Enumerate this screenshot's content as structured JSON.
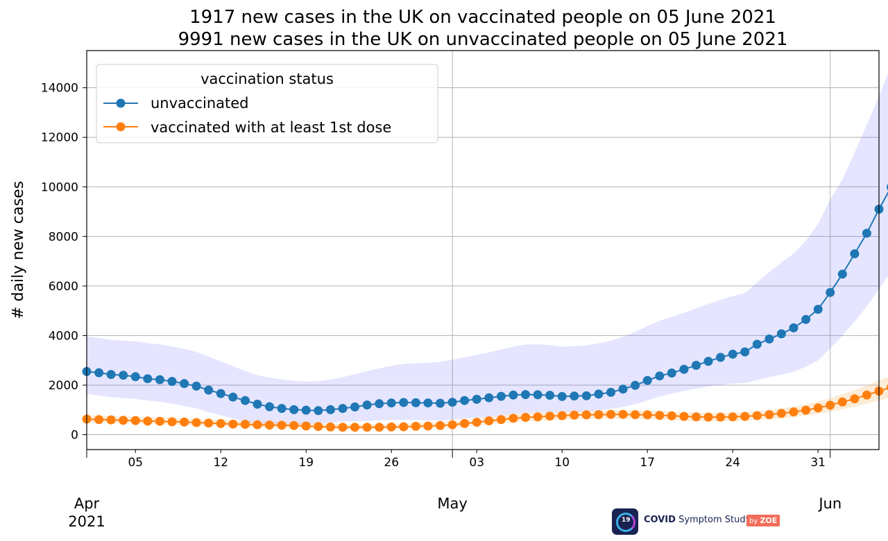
{
  "chart_data": {
    "type": "line",
    "title_lines": [
      "1917 new cases in the UK on vaccinated people on 05 June 2021",
      "9991 new cases in the UK on unvaccinated people on 05 June 2021"
    ],
    "xlabel": "",
    "ylabel": "# daily new cases",
    "x_start": "2021-04-01",
    "x_end": "2021-06-05",
    "ylim": [
      -600,
      15500
    ],
    "y_ticks": [
      0,
      2000,
      4000,
      6000,
      8000,
      10000,
      12000,
      14000
    ],
    "x_minor_ticks": [
      {
        "date": "2021-04-05",
        "label": "05"
      },
      {
        "date": "2021-04-12",
        "label": "12"
      },
      {
        "date": "2021-04-19",
        "label": "19"
      },
      {
        "date": "2021-04-26",
        "label": "26"
      },
      {
        "date": "2021-05-03",
        "label": "03"
      },
      {
        "date": "2021-05-10",
        "label": "10"
      },
      {
        "date": "2021-05-17",
        "label": "17"
      },
      {
        "date": "2021-05-24",
        "label": "24"
      },
      {
        "date": "2021-05-31",
        "label": "31"
      }
    ],
    "x_major_ticks": [
      {
        "date": "2021-04-01",
        "label": "Apr",
        "sublabel": "2021"
      },
      {
        "date": "2021-05-01",
        "label": "May",
        "sublabel": ""
      },
      {
        "date": "2021-06-01",
        "label": "Jun",
        "sublabel": ""
      }
    ],
    "grid": true,
    "legend": {
      "title": "vaccination status",
      "placement": "top-left"
    },
    "series": [
      {
        "name": "unvaccinated",
        "color": "#1f77b4",
        "band_color": "#6666ff",
        "values": [
          2550,
          2500,
          2430,
          2400,
          2340,
          2260,
          2220,
          2150,
          2060,
          1960,
          1800,
          1660,
          1520,
          1380,
          1230,
          1130,
          1060,
          1010,
          990,
          970,
          1010,
          1060,
          1120,
          1200,
          1250,
          1280,
          1300,
          1290,
          1280,
          1270,
          1310,
          1380,
          1430,
          1490,
          1550,
          1600,
          1620,
          1610,
          1590,
          1540,
          1560,
          1570,
          1640,
          1710,
          1840,
          1990,
          2190,
          2370,
          2490,
          2640,
          2800,
          2960,
          3120,
          3250,
          3340,
          3650,
          3860,
          4070,
          4310,
          4650,
          5060,
          5740,
          6480,
          7300,
          8130,
          9100,
          9991
        ],
        "ci_lower": [
          1650,
          1580,
          1520,
          1480,
          1440,
          1380,
          1330,
          1250,
          1160,
          1060,
          910,
          780,
          650,
          530,
          430,
          390,
          370,
          380,
          410,
          440,
          480,
          520,
          540,
          560,
          580,
          590,
          600,
          590,
          580,
          570,
          600,
          640,
          680,
          720,
          780,
          840,
          880,
          900,
          900,
          900,
          920,
          940,
          980,
          1040,
          1120,
          1240,
          1380,
          1540,
          1660,
          1760,
          1860,
          1940,
          2000,
          2060,
          2080,
          2200,
          2320,
          2420,
          2540,
          2740,
          3000,
          3480,
          4000,
          4560,
          5180,
          5880,
          6580
        ],
        "ci_upper": [
          3960,
          3900,
          3830,
          3800,
          3760,
          3700,
          3640,
          3560,
          3460,
          3340,
          3150,
          2960,
          2760,
          2580,
          2400,
          2300,
          2230,
          2170,
          2150,
          2160,
          2220,
          2320,
          2440,
          2570,
          2680,
          2780,
          2860,
          2880,
          2900,
          2940,
          3020,
          3120,
          3220,
          3320,
          3440,
          3560,
          3640,
          3650,
          3610,
          3550,
          3570,
          3600,
          3690,
          3790,
          3950,
          4150,
          4380,
          4600,
          4760,
          4920,
          5100,
          5270,
          5440,
          5590,
          5710,
          6150,
          6560,
          6950,
          7310,
          7830,
          8500,
          9490,
          10300,
          11380,
          12500,
          13660,
          14900
        ]
      },
      {
        "name": "vaccinated with at least 1st dose",
        "color": "#ff7f0e",
        "band_color": "#f5c07a",
        "values": [
          630,
          610,
          600,
          580,
          570,
          550,
          540,
          520,
          510,
          490,
          470,
          450,
          430,
          420,
          400,
          390,
          380,
          370,
          350,
          330,
          310,
          300,
          300,
          300,
          300,
          310,
          320,
          340,
          350,
          370,
          400,
          450,
          500,
          560,
          610,
          660,
          700,
          720,
          750,
          770,
          790,
          800,
          810,
          820,
          820,
          810,
          800,
          780,
          760,
          740,
          720,
          710,
          710,
          720,
          740,
          770,
          810,
          860,
          920,
          990,
          1080,
          1190,
          1320,
          1450,
          1600,
          1760,
          1917
        ],
        "ci_lower": [
          500,
          490,
          480,
          460,
          450,
          430,
          420,
          400,
          390,
          370,
          350,
          340,
          320,
          310,
          290,
          280,
          270,
          260,
          250,
          240,
          220,
          210,
          210,
          210,
          210,
          220,
          230,
          240,
          250,
          270,
          290,
          330,
          370,
          420,
          460,
          500,
          540,
          560,
          580,
          600,
          620,
          630,
          640,
          650,
          650,
          640,
          630,
          610,
          590,
          570,
          550,
          540,
          540,
          550,
          570,
          590,
          620,
          660,
          700,
          760,
          830,
          920,
          1030,
          1130,
          1250,
          1380,
          1500
        ],
        "ci_upper": [
          790,
          770,
          760,
          740,
          730,
          710,
          700,
          680,
          660,
          640,
          620,
          600,
          580,
          560,
          540,
          530,
          520,
          500,
          480,
          460,
          440,
          430,
          430,
          430,
          430,
          440,
          450,
          470,
          490,
          510,
          540,
          590,
          650,
          720,
          770,
          830,
          870,
          890,
          920,
          940,
          960,
          970,
          980,
          990,
          990,
          980,
          970,
          950,
          930,
          910,
          890,
          880,
          880,
          890,
          910,
          950,
          1000,
          1060,
          1130,
          1220,
          1340,
          1480,
          1640,
          1800,
          1990,
          2190,
          2380
        ]
      }
    ]
  },
  "branding": {
    "badge": "19",
    "name_bold": "COVID",
    "name_rest": " Symptom Study",
    "by": "by",
    "company": "ZOE"
  }
}
